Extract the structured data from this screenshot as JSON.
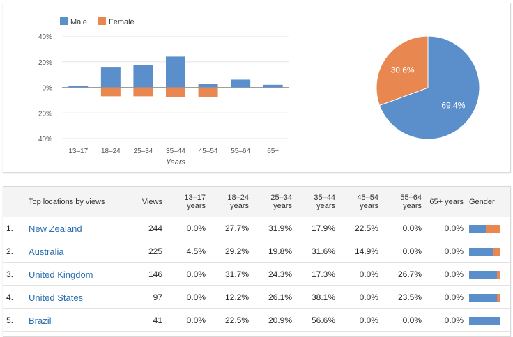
{
  "colors": {
    "male": "#5b8fcc",
    "female": "#e8874f"
  },
  "chart_data": [
    {
      "type": "bar",
      "xlabel": "Years",
      "ylabel": "",
      "ylim": [
        -40,
        40
      ],
      "yticks": [
        "40%",
        "20%",
        "0%",
        "20%",
        "40%"
      ],
      "categories": [
        "13–17",
        "18–24",
        "25–34",
        "35–44",
        "45–54",
        "55–64",
        "65+"
      ],
      "series": [
        {
          "name": "Male",
          "values": [
            1,
            16,
            17.5,
            24,
            2.5,
            6,
            2
          ]
        },
        {
          "name": "Female",
          "values": [
            0,
            -7,
            -7,
            -7.5,
            -7.5,
            0,
            0
          ]
        }
      ],
      "legend": "top-left",
      "grid": true
    },
    {
      "type": "pie",
      "slices": [
        {
          "name": "Male",
          "value": 69.4,
          "label": "69.4%"
        },
        {
          "name": "Female",
          "value": 30.6,
          "label": "30.6%"
        }
      ]
    }
  ],
  "table": {
    "headers": [
      "Top locations by views",
      "Views",
      "13–17 years",
      "18–24 years",
      "25–34 years",
      "35–44 years",
      "45–54 years",
      "55–64 years",
      "65+ years",
      "Gender"
    ],
    "rows": [
      {
        "rank": "1.",
        "location": "New Zealand",
        "views": "244",
        "ages": [
          "0.0%",
          "27.7%",
          "31.9%",
          "17.9%",
          "22.5%",
          "0.0%",
          "0.0%"
        ],
        "male_share": 0.55
      },
      {
        "rank": "2.",
        "location": "Australia",
        "views": "225",
        "ages": [
          "4.5%",
          "29.2%",
          "19.8%",
          "31.6%",
          "14.9%",
          "0.0%",
          "0.0%"
        ],
        "male_share": 0.78
      },
      {
        "rank": "3.",
        "location": "United Kingdom",
        "views": "146",
        "ages": [
          "0.0%",
          "31.7%",
          "24.3%",
          "17.3%",
          "0.0%",
          "26.7%",
          "0.0%"
        ],
        "male_share": 0.92
      },
      {
        "rank": "4.",
        "location": "United States",
        "views": "97",
        "ages": [
          "0.0%",
          "12.2%",
          "26.1%",
          "38.1%",
          "0.0%",
          "23.5%",
          "0.0%"
        ],
        "male_share": 0.92
      },
      {
        "rank": "5.",
        "location": "Brazil",
        "views": "41",
        "ages": [
          "0.0%",
          "22.5%",
          "20.9%",
          "56.6%",
          "0.0%",
          "0.0%",
          "0.0%"
        ],
        "male_share": 1.0
      }
    ]
  }
}
